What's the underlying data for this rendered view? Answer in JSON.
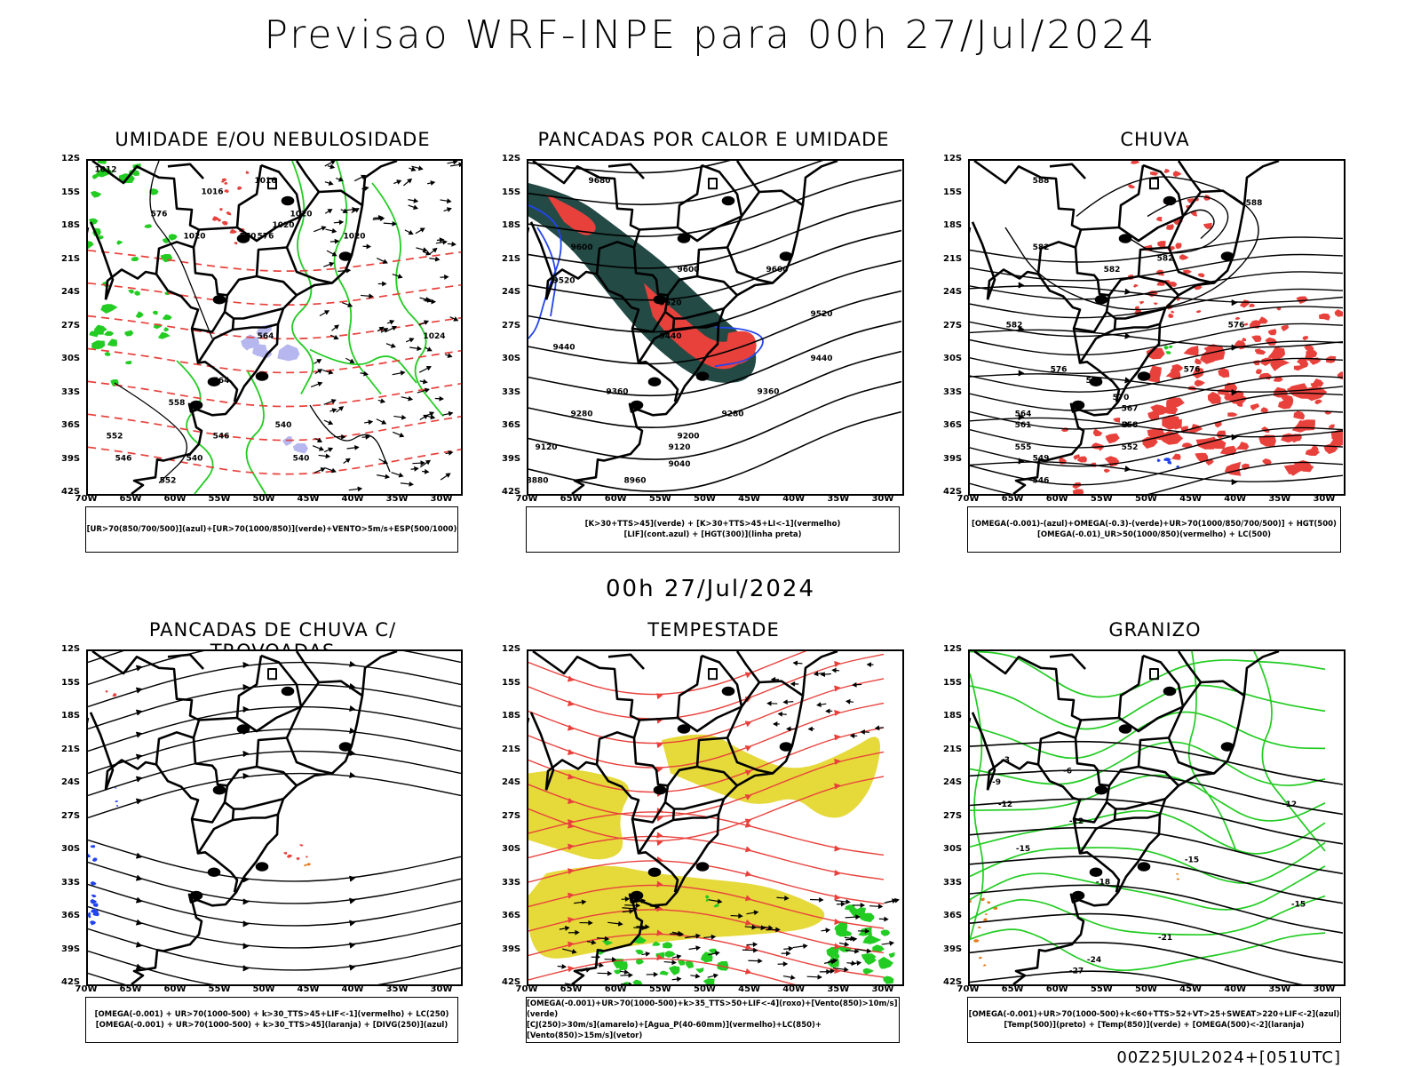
{
  "title": "Previsao WRF-INPE  para 00h 27/Jul/2024",
  "mid_title": "00h 27/Jul/2024",
  "footer": "00Z25JUL2024+[051UTC]",
  "lat_labels": [
    "12S",
    "15S",
    "18S",
    "21S",
    "24S",
    "27S",
    "30S",
    "33S",
    "36S",
    "39S",
    "42S"
  ],
  "lon_labels": [
    "70W",
    "65W",
    "60W",
    "55W",
    "50W",
    "45W",
    "40W",
    "35W",
    "30W"
  ],
  "colors": {
    "black": "#000000",
    "red": "#e8413c",
    "green": "#22cc22",
    "lavender": "#b0b0ee",
    "blue": "#2244ee",
    "darkteal": "#234a45",
    "yellow": "#e6d93a",
    "orange": "#e07a1a"
  },
  "panels": [
    {
      "title": "UMIDADE E/OU NEBULOSIDADE",
      "legend": [
        "[UR>70(850/700/500)](azul)+[UR>70(1000/850)](verde)+VENTO>5m/s+ESP(500/1000)"
      ],
      "labels": [
        "1012",
        "1016",
        "1016",
        "1020",
        "1020",
        "1020",
        "1020",
        "1024",
        "576",
        "576",
        "570",
        "564",
        "564",
        "558",
        "552",
        "546",
        "540",
        "540",
        "552",
        "546",
        "540"
      ]
    },
    {
      "title": "PANCADAS POR CALOR E UMIDADE",
      "legend": [
        "[K>30+TTS>45](verde) + [K>30+TTS>45+LI<-1](vermelho)",
        "[LIF](cont.azul) + [HGT(300)](linha preta)"
      ],
      "labels": [
        "9680",
        "9600",
        "9600",
        "9600",
        "9520",
        "9520",
        "9520",
        "9440",
        "9440",
        "9440",
        "9360",
        "9360",
        "9280",
        "9280",
        "9200",
        "9120",
        "9120",
        "9040",
        "8960",
        "8880"
      ]
    },
    {
      "title": "CHUVA",
      "legend": [
        "[OMEGA(-0.001)-(azul)+OMEGA(-0.3)-(verde)+UR>70(1000/850/700/500)] + HGT(500)",
        "[OMEGA(-0.01)_UR>50(1000/850)(vermelho) + LC(500)"
      ],
      "labels": [
        "588",
        "588",
        "582",
        "582",
        "582",
        "582",
        "576",
        "576",
        "576",
        "573",
        "570",
        "567",
        "564",
        "561",
        "558",
        "555",
        "552",
        "549",
        "546"
      ]
    },
    {
      "title": "PANCADAS DE CHUVA C/ TROVOADAS",
      "legend": [
        "[OMEGA(-0.001) + UR>70(1000-500) + k>30_TTS>45+LIF<-1](vermelho) + LC(250)",
        "[OMEGA(-0.001) + UR>70(1000-500) + k>30_TTS>45](laranja) + [DIVG(250)](azul)"
      ],
      "labels": []
    },
    {
      "title": "TEMPESTADE",
      "legend": [
        "[OMEGA(-0.001)+UR>70(1000-500)+k>35_TTS>50+LIF<-4](roxo)+[Vento(850)>10m/s](verde)",
        "[CJ(250)>30m/s](amarelo)+[Agua_P(40-60mm)](vermelho)+LC(850)+[Vento(850)>15m/s](vetor)"
      ],
      "labels": []
    },
    {
      "title": "GRANIZO",
      "legend": [
        "[OMEGA(-0.001)+UR>70(1000-500)+k<60+TTS>52+VT>25+SWEAT>220+LIF<-2](azul)",
        "[Temp(500)](preto) + [Temp(850)](verde) + [OMEGA(500)<-2](laranja)"
      ],
      "labels": [
        "-3",
        "-6",
        "-9",
        "-12",
        "-12",
        "-12",
        "-15",
        "-15",
        "-15",
        "-18",
        "-21",
        "-24",
        "-27"
      ]
    }
  ]
}
